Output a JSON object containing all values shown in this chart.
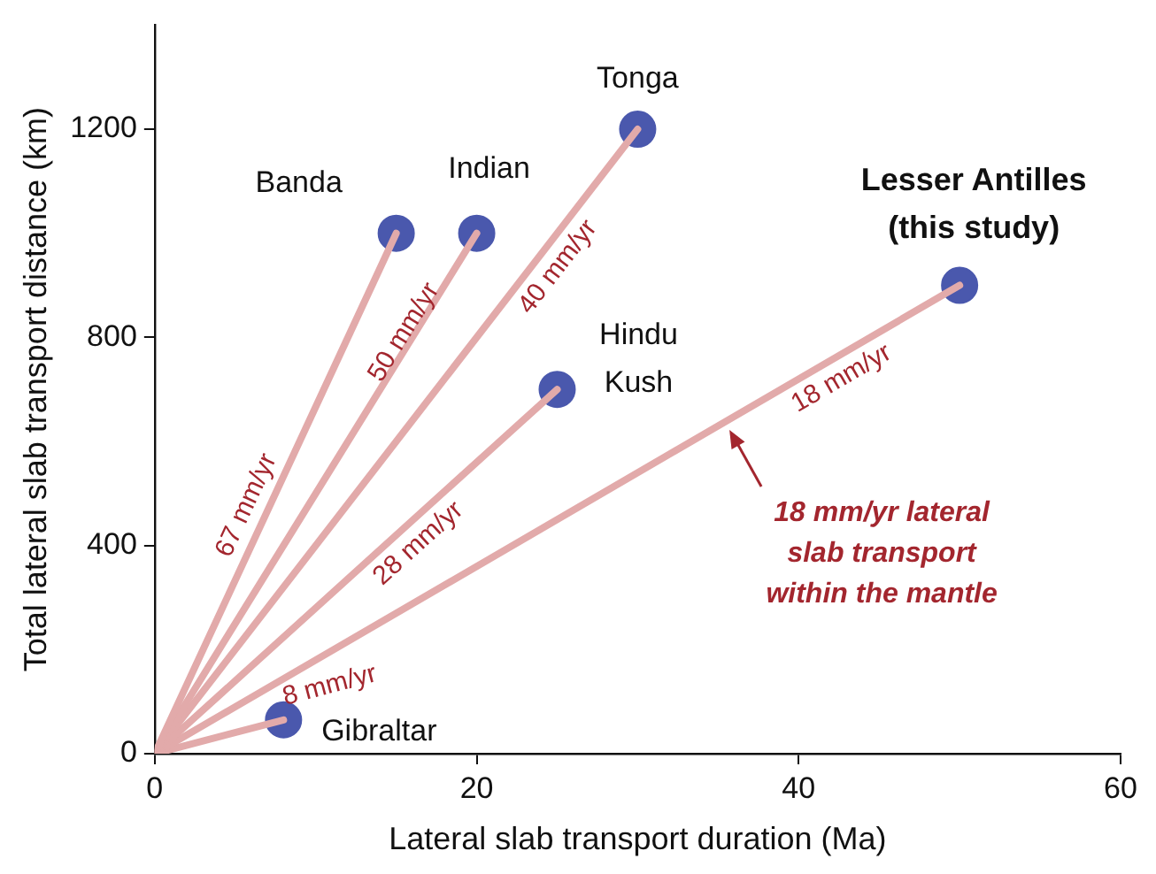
{
  "chart_data": {
    "type": "scatter",
    "xlabel": "Lateral slab transport duration (Ma)",
    "ylabel": "Total lateral slab transport distance (km)",
    "xlim": [
      0,
      60
    ],
    "xticks": [
      0,
      20,
      40,
      60
    ],
    "ylim": [
      0,
      1400
    ],
    "yticks": [
      0,
      400,
      800,
      1200
    ],
    "grid": false,
    "legend": false,
    "series": [
      {
        "type": "line",
        "marker": "none",
        "name": "67 mm/yr",
        "color": "#e2aaaa",
        "x": [
          0,
          15
        ],
        "values": [
          0,
          1000
        ]
      },
      {
        "type": "line",
        "marker": "none",
        "name": "50 mm/yr",
        "color": "#e2aaaa",
        "x": [
          0,
          20
        ],
        "values": [
          0,
          1000
        ]
      },
      {
        "type": "line",
        "marker": "none",
        "name": "40 mm/yr",
        "color": "#e2aaaa",
        "x": [
          0,
          30
        ],
        "values": [
          0,
          1200
        ]
      },
      {
        "type": "line",
        "marker": "none",
        "name": "28 mm/yr",
        "color": "#e2aaaa",
        "x": [
          0,
          25
        ],
        "values": [
          0,
          700
        ]
      },
      {
        "type": "line",
        "marker": "none",
        "name": "18 mm/yr",
        "color": "#e2aaaa",
        "x": [
          0,
          50
        ],
        "values": [
          0,
          900
        ]
      },
      {
        "type": "line",
        "marker": "none",
        "name": "8 mm/yr",
        "color": "#e2aaaa",
        "x": [
          0,
          8
        ],
        "values": [
          0,
          65
        ]
      },
      {
        "marker": "circle",
        "name": "Banda",
        "color": "#4a58ad",
        "x": [
          15
        ],
        "values": [
          1000
        ]
      },
      {
        "marker": "circle",
        "name": "Indian",
        "color": "#4a58ad",
        "x": [
          20
        ],
        "values": [
          1000
        ]
      },
      {
        "marker": "circle",
        "name": "Tonga",
        "color": "#4a58ad",
        "x": [
          30
        ],
        "values": [
          1200
        ]
      },
      {
        "marker": "circle",
        "name": "Hindu\nKush",
        "color": "#4a58ad",
        "x": [
          25
        ],
        "values": [
          700
        ]
      },
      {
        "marker": "circle",
        "name": "Lesser Antilles\n(this study)",
        "color": "#4a58ad",
        "x": [
          50
        ],
        "values": [
          900
        ]
      },
      {
        "marker": "circle",
        "name": "Gibraltar",
        "color": "#4a58ad",
        "x": [
          8
        ],
        "values": [
          65
        ]
      }
    ],
    "annotations": [
      {
        "text": "18 mm/yr lateral\nslab transport\nwithin the mantle",
        "x": 35.7,
        "y": 622
      }
    ]
  }
}
